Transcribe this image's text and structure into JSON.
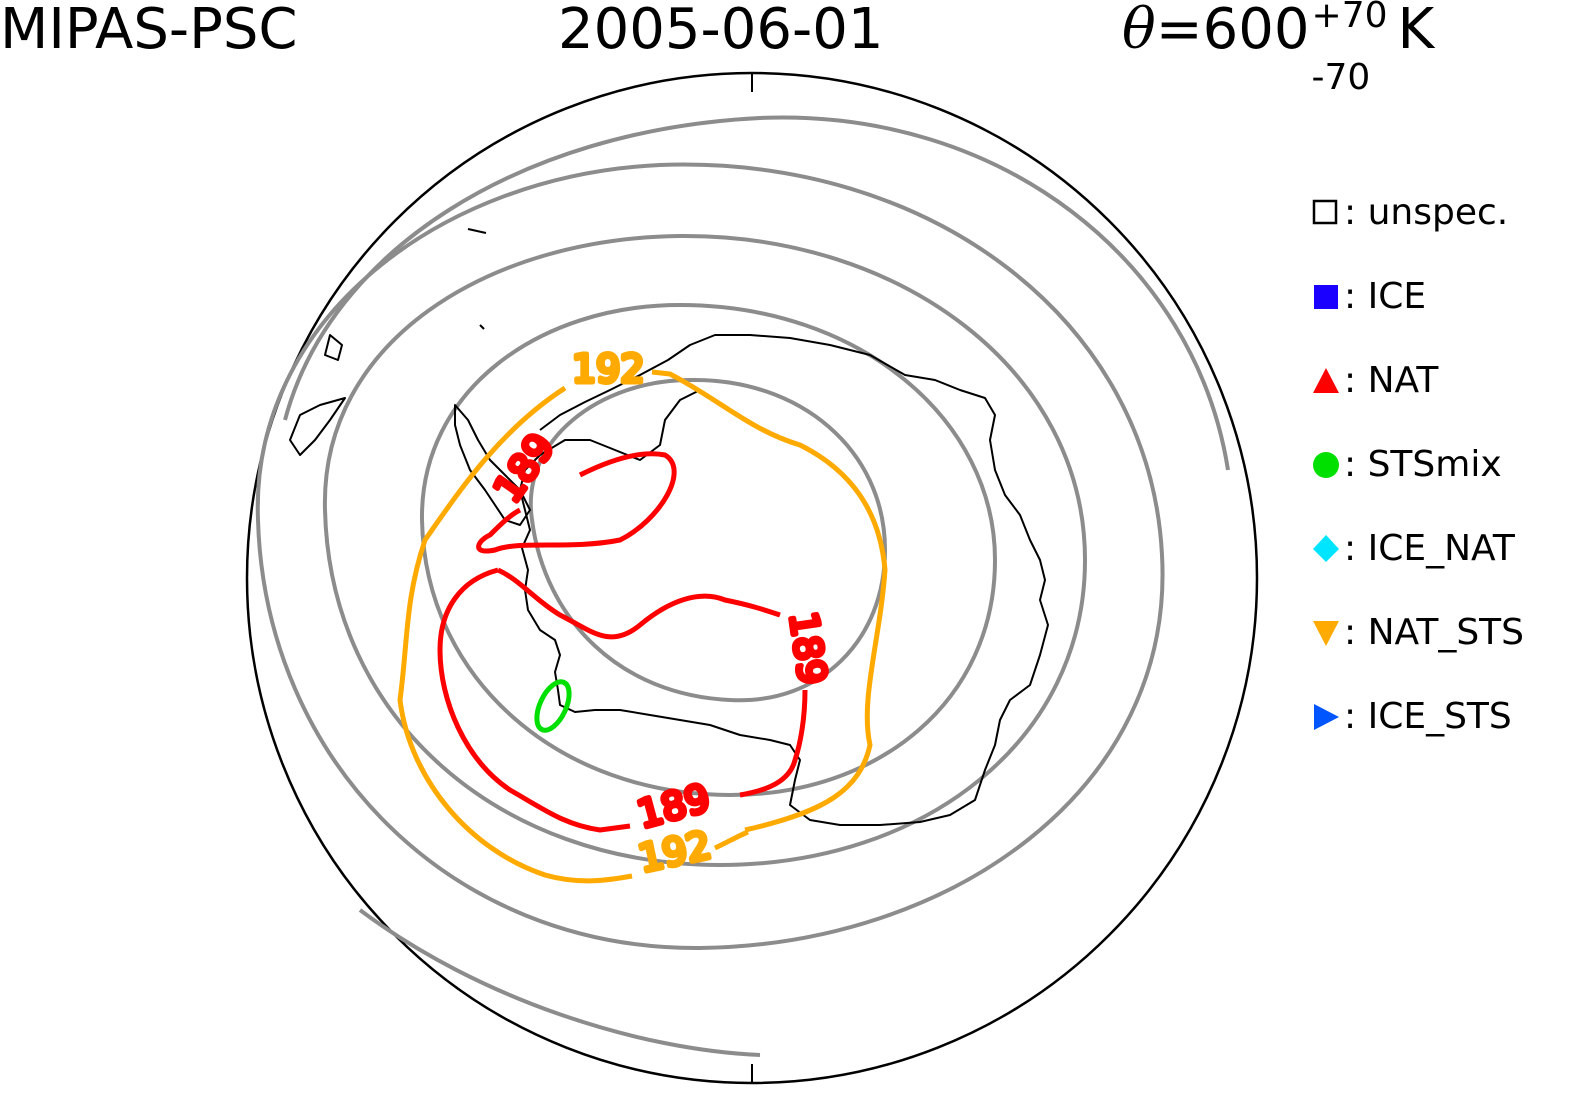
{
  "header": {
    "left": "MIPAS-PSC",
    "date": "2005-06-01",
    "theta_symbol": "θ",
    "theta_value": "=600",
    "theta_sup": "+70",
    "theta_sub": "-70",
    "theta_unit": "K"
  },
  "map": {
    "projection": "south polar stereographic",
    "coastline": "Antarctica",
    "colors": {
      "background_contours": "#8c8c8c",
      "coast": "#000000"
    }
  },
  "contours": [
    {
      "value": 192,
      "label": "192",
      "color": "#ffaa00"
    },
    {
      "value": 189,
      "label": "189",
      "color": "#ff0000"
    }
  ],
  "sts_patch": {
    "color": "#00e000"
  },
  "legend": [
    {
      "marker": "open-square",
      "color": "#000000",
      "label": ": unspec."
    },
    {
      "marker": "square",
      "color": "#1a00ff",
      "label": ": ICE"
    },
    {
      "marker": "triangle-up",
      "color": "#ff0000",
      "label": ": NAT"
    },
    {
      "marker": "circle",
      "color": "#00e000",
      "label": ": STSmix"
    },
    {
      "marker": "diamond",
      "color": "#00e5ff",
      "label": ": ICE_NAT"
    },
    {
      "marker": "triangle-down",
      "color": "#ffaa00",
      "label": ": NAT_STS"
    },
    {
      "marker": "triangle-right",
      "color": "#0055ff",
      "label": ": ICE_STS"
    }
  ]
}
